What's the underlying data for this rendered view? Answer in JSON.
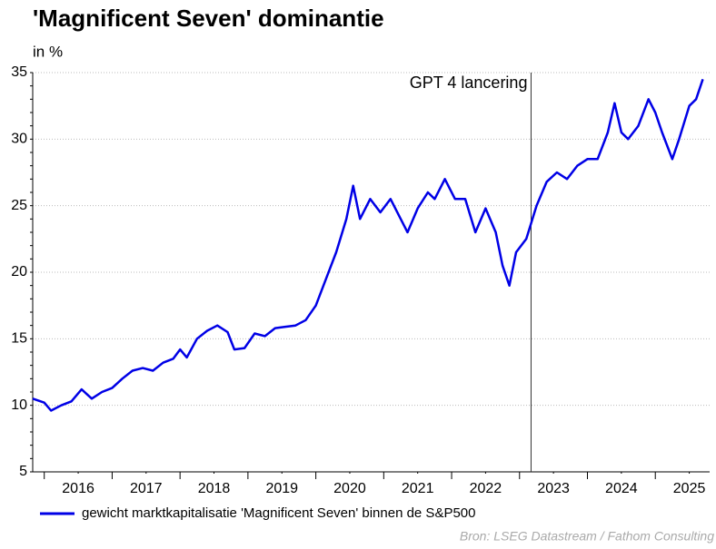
{
  "chart_data": {
    "type": "line",
    "title": "'Magnificent Seven' dominantie",
    "subtitle": "in %",
    "source": "Bron: LSEG Datastream / Fathom Consulting",
    "x": [
      2015.83,
      2016.0,
      2016.1,
      2016.25,
      2016.4,
      2016.55,
      2016.7,
      2016.85,
      2017.0,
      2017.15,
      2017.3,
      2017.45,
      2017.6,
      2017.75,
      2017.9,
      2018.0,
      2018.1,
      2018.25,
      2018.4,
      2018.55,
      2018.7,
      2018.8,
      2018.95,
      2019.1,
      2019.25,
      2019.4,
      2019.55,
      2019.7,
      2019.85,
      2020.0,
      2020.15,
      2020.3,
      2020.45,
      2020.55,
      2020.65,
      2020.8,
      2020.95,
      2021.1,
      2021.25,
      2021.35,
      2021.5,
      2021.65,
      2021.75,
      2021.9,
      2022.05,
      2022.2,
      2022.35,
      2022.5,
      2022.65,
      2022.75,
      2022.85,
      2022.95,
      2023.1,
      2023.25,
      2023.4,
      2023.55,
      2023.7,
      2023.85,
      2024.0,
      2024.15,
      2024.3,
      2024.4,
      2024.5,
      2024.6,
      2024.75,
      2024.9,
      2025.0,
      2025.1,
      2025.25,
      2025.35,
      2025.5,
      2025.6,
      2025.7
    ],
    "series": [
      {
        "name": "gewicht marktkapitalisatie 'Magnificent Seven' binnen de S&P500",
        "color": "#0000e6",
        "values": [
          10.5,
          10.2,
          9.6,
          10.0,
          10.3,
          11.2,
          10.5,
          11.0,
          11.3,
          12.0,
          12.6,
          12.8,
          12.6,
          13.2,
          13.5,
          14.2,
          13.6,
          15.0,
          15.6,
          16.0,
          15.5,
          14.2,
          14.3,
          15.4,
          15.2,
          15.8,
          15.9,
          16.0,
          16.4,
          17.5,
          19.5,
          21.5,
          24.0,
          26.5,
          24.0,
          25.5,
          24.5,
          25.5,
          24.0,
          23.0,
          24.8,
          26.0,
          25.5,
          27.0,
          25.5,
          25.5,
          23.0,
          24.8,
          23.0,
          20.5,
          19.0,
          21.5,
          22.5,
          25.0,
          26.8,
          27.5,
          27.0,
          28.0,
          28.5,
          28.5,
          30.5,
          32.7,
          30.5,
          30.0,
          31.0,
          33.0,
          32.0,
          30.5,
          28.5,
          30.0,
          32.5,
          33.0,
          34.5
        ]
      }
    ],
    "xlim": [
      2015.83,
      2025.8
    ],
    "xticks": [
      {
        "value": 2016.5,
        "label": "2016"
      },
      {
        "value": 2017.5,
        "label": "2017"
      },
      {
        "value": 2018.5,
        "label": "2018"
      },
      {
        "value": 2019.5,
        "label": "2019"
      },
      {
        "value": 2020.5,
        "label": "2020"
      },
      {
        "value": 2021.5,
        "label": "2021"
      },
      {
        "value": 2022.5,
        "label": "2022"
      },
      {
        "value": 2023.5,
        "label": "2023"
      },
      {
        "value": 2024.5,
        "label": "2024"
      },
      {
        "value": 2025.5,
        "label": "2025"
      }
    ],
    "ylim": [
      5,
      35
    ],
    "yticks": [
      5,
      10,
      15,
      20,
      25,
      30,
      35
    ],
    "grid": true,
    "annotations": [
      {
        "x": 2023.17,
        "label": "GPT 4 lancering"
      }
    ]
  }
}
